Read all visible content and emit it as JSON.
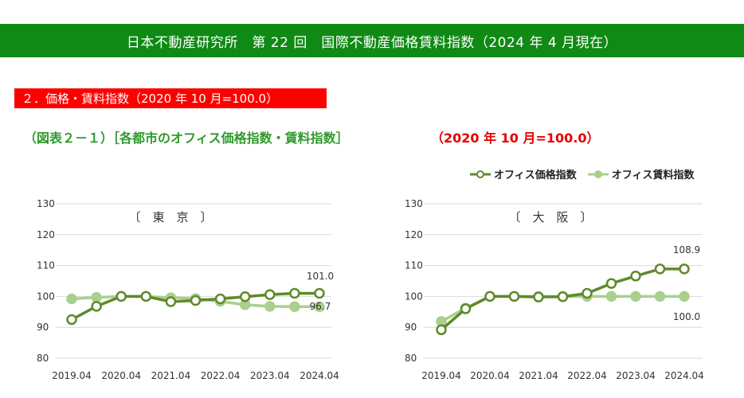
{
  "header": {
    "title": "日本不動産研究所　第 22 回　国際不動産価格賃料指数（2024 年 4 月現在）"
  },
  "section": {
    "title": "２．価格・賃料指数（2020 年 10 月=100.0）"
  },
  "figure": {
    "title": "（図表２－１）［各都市のオフィス価格指数・賃料指数］",
    "base_note": "（2020 年 10 月=100.0）"
  },
  "legend": {
    "price": "オフィス価格指数",
    "rent": "オフィス賃料指数"
  },
  "colors": {
    "price": "#5e8a2b",
    "rent": "#a9d08e",
    "grid": "#d9d9d9",
    "header_bg": "#0f8a14",
    "section_bg": "#ff0000"
  },
  "chart_data": [
    {
      "type": "line",
      "title": "〔　東　京　〕",
      "x": [
        "2019.04",
        "2019.10",
        "2020.04",
        "2020.10",
        "2021.04",
        "2021.10",
        "2022.04",
        "2022.10",
        "2023.04",
        "2023.10",
        "2024.04"
      ],
      "xticks": [
        "2019.04",
        "2020.04",
        "2021.04",
        "2022.04",
        "2023.04",
        "2024.04"
      ],
      "yticks": [
        "130",
        "120",
        "110",
        "100",
        "90",
        "80"
      ],
      "ylim": [
        80,
        130
      ],
      "series": [
        {
          "name": "オフィス価格指数",
          "values": [
            92.5,
            96.8,
            100.0,
            100.0,
            98.3,
            98.7,
            99.2,
            99.9,
            100.6,
            101.0,
            101.0
          ]
        },
        {
          "name": "オフィス賃料指数",
          "values": [
            99.2,
            99.7,
            100.0,
            100.0,
            99.6,
            99.3,
            98.4,
            97.3,
            96.8,
            96.7,
            96.7
          ]
        }
      ],
      "labels": {
        "price_last": "101.0",
        "rent_last": "96.7"
      }
    },
    {
      "type": "line",
      "title": "〔　大　阪　〕",
      "x": [
        "2019.04",
        "2019.10",
        "2020.04",
        "2020.10",
        "2021.04",
        "2021.10",
        "2022.04",
        "2022.10",
        "2023.04",
        "2023.10",
        "2024.04"
      ],
      "xticks": [
        "2019.04",
        "2020.04",
        "2021.04",
        "2022.04",
        "2023.04",
        "2024.04"
      ],
      "yticks": [
        "130",
        "120",
        "110",
        "100",
        "90",
        "80"
      ],
      "ylim": [
        80,
        130
      ],
      "series": [
        {
          "name": "オフィス価格指数",
          "values": [
            89.2,
            96.0,
            100.0,
            100.0,
            99.8,
            99.9,
            101.0,
            104.2,
            106.6,
            108.9,
            108.9
          ]
        },
        {
          "name": "オフィス賃料指数",
          "values": [
            91.9,
            96.2,
            100.0,
            100.0,
            100.0,
            100.0,
            100.0,
            100.0,
            100.0,
            100.0,
            100.0
          ]
        }
      ],
      "labels": {
        "price_last": "108.9",
        "rent_last": "100.0"
      }
    }
  ]
}
